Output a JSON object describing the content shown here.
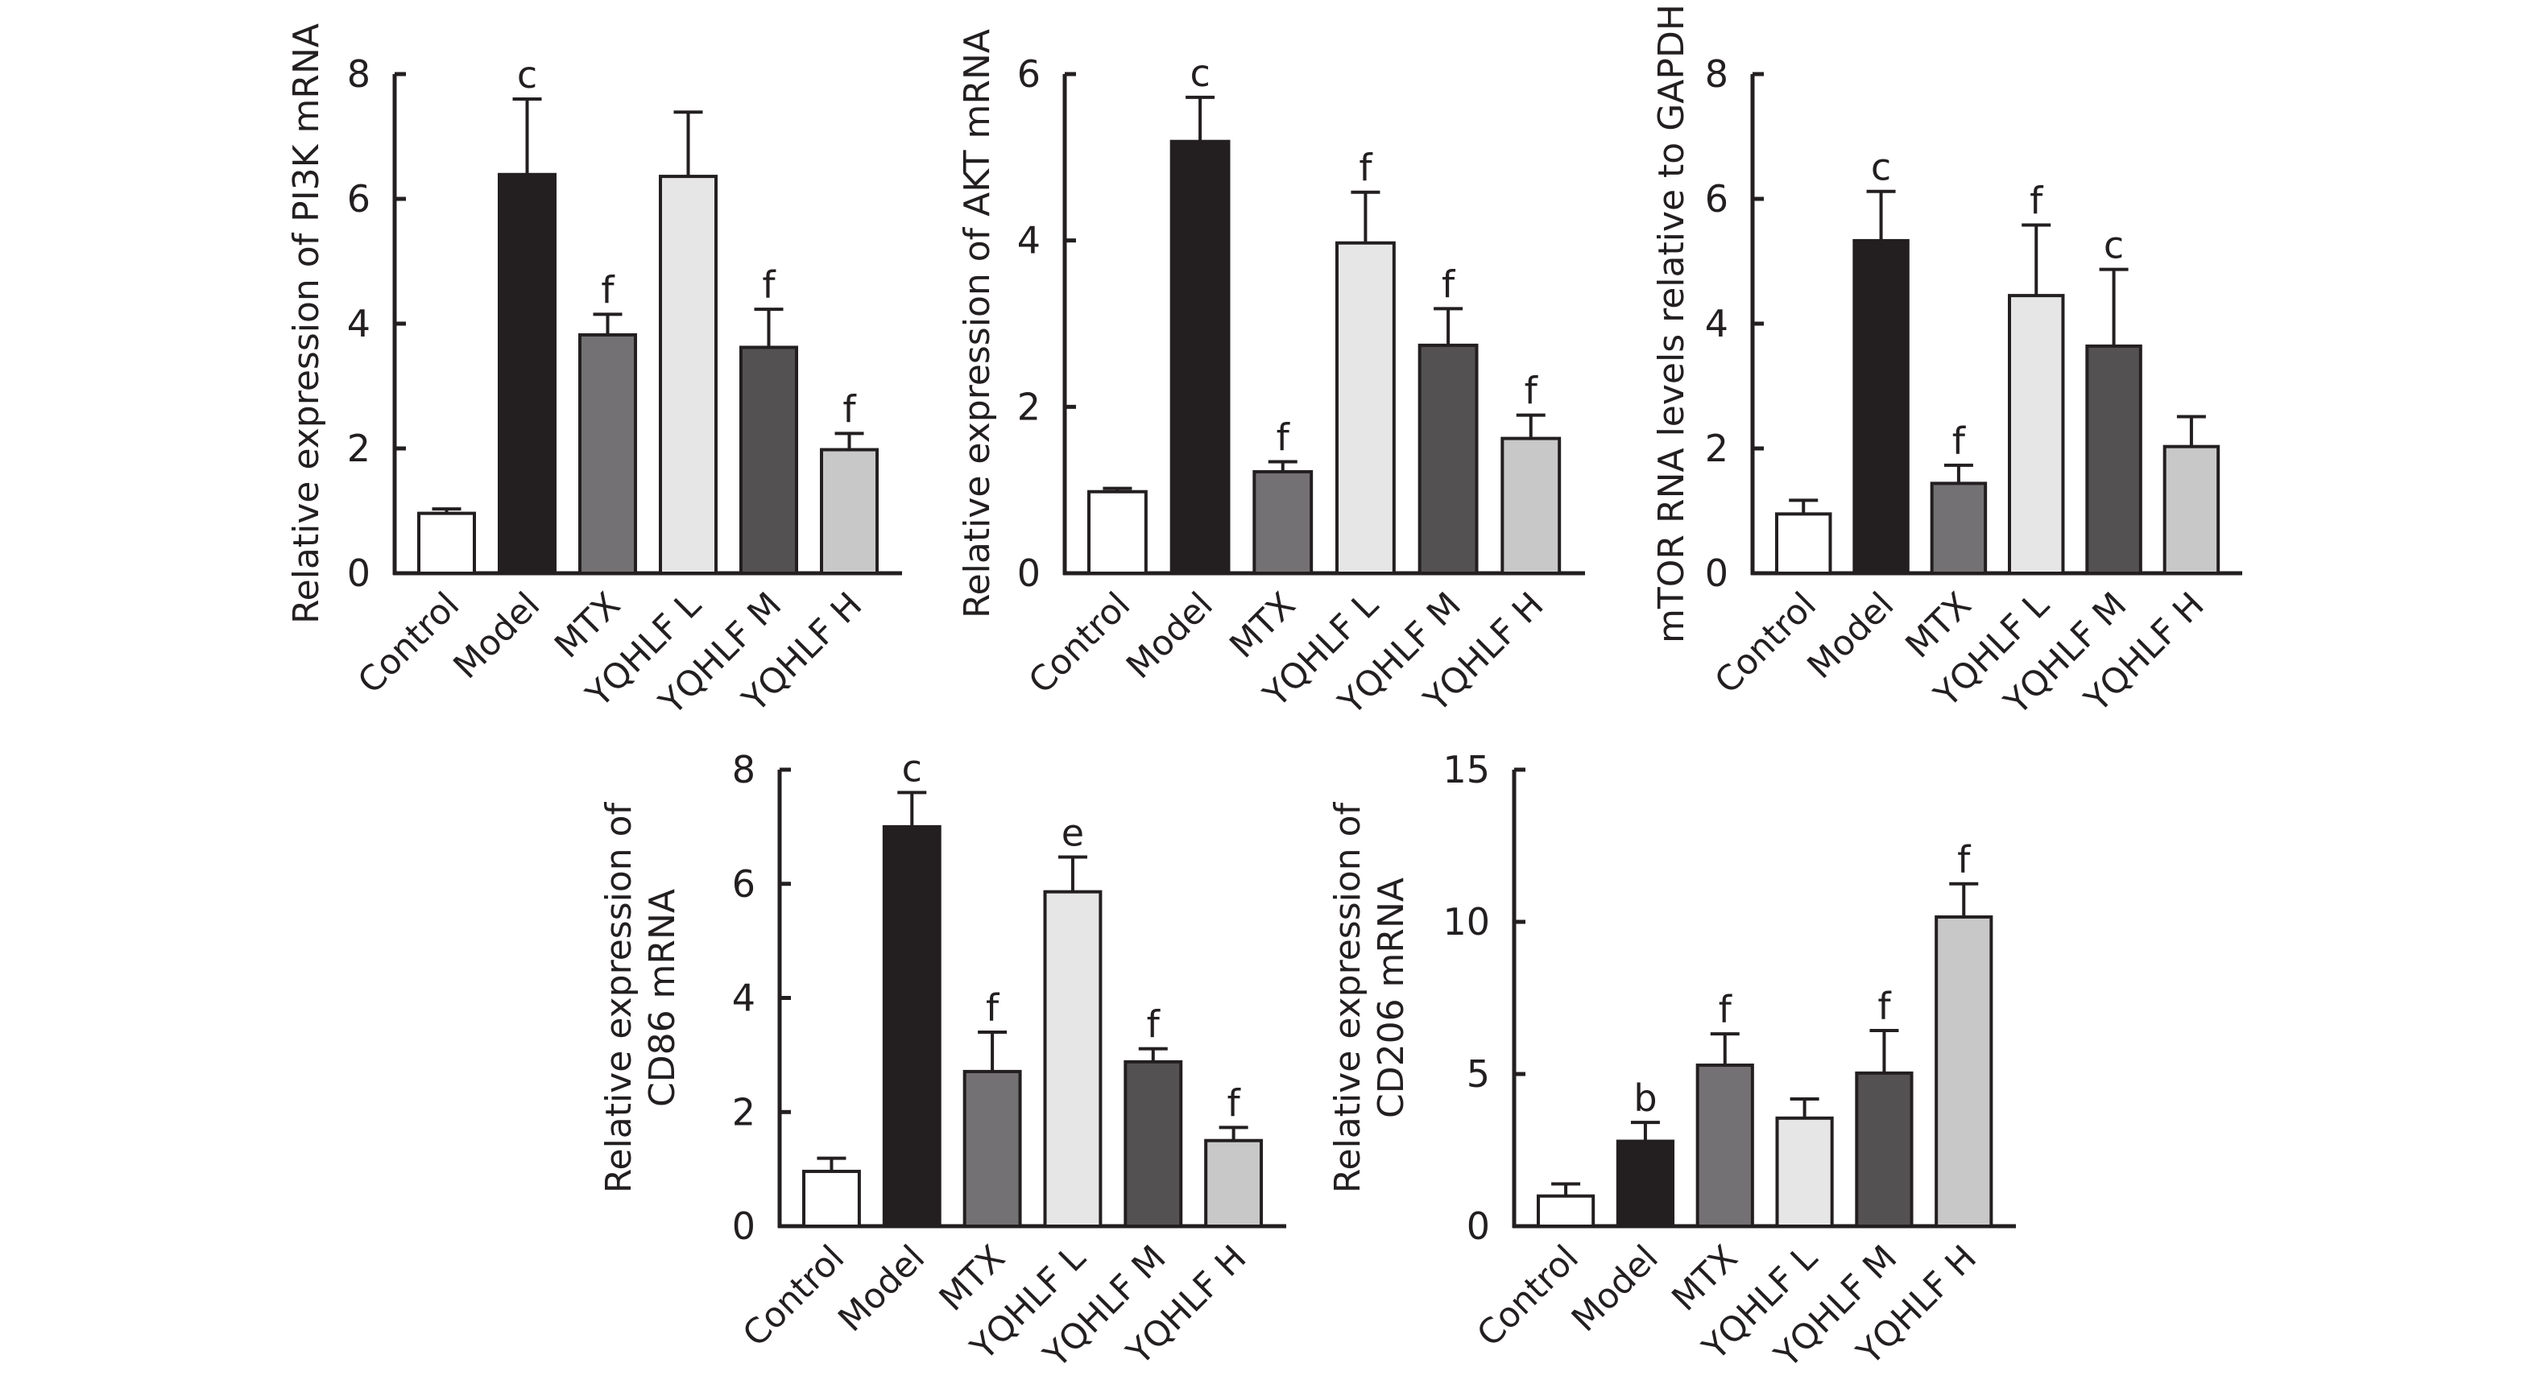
{
  "chart_data": [
    {
      "id": "pi3k",
      "type": "bar",
      "title": "",
      "xlabel": "",
      "ylabel": [
        "Relative expression of PI3K mRNA"
      ],
      "ylim": [
        0,
        8
      ],
      "yticks": [
        0,
        2,
        4,
        6,
        8
      ],
      "grid": false,
      "categories": [
        "Control",
        "Model",
        "MTX",
        "YQHLF L",
        "YQHLF M",
        "YQHLF H"
      ],
      "values": [
        0.96,
        6.39,
        3.82,
        6.36,
        3.62,
        1.98
      ],
      "error_upper": [
        1.03,
        7.6,
        4.15,
        7.39,
        4.23,
        2.24
      ],
      "significance": [
        "",
        "c",
        "f",
        "",
        "f",
        "f"
      ]
    },
    {
      "id": "akt",
      "type": "bar",
      "title": "",
      "xlabel": "",
      "ylabel": [
        "Relative expression of AKT mRNA"
      ],
      "ylim": [
        0,
        6
      ],
      "yticks": [
        0,
        2,
        4,
        6
      ],
      "grid": false,
      "categories": [
        "Control",
        "Model",
        "MTX",
        "YQHLF L",
        "YQHLF M",
        "YQHLF H"
      ],
      "values": [
        0.98,
        5.19,
        1.22,
        3.97,
        2.74,
        1.62
      ],
      "error_upper": [
        1.02,
        5.72,
        1.34,
        4.58,
        3.18,
        1.9
      ],
      "significance": [
        "",
        "c",
        "f",
        "f",
        "f",
        "f"
      ]
    },
    {
      "id": "mtor",
      "type": "bar",
      "title": "",
      "xlabel": "",
      "ylabel": [
        "mTOR RNA levels relative to GAPDH"
      ],
      "ylim": [
        0,
        8
      ],
      "yticks": [
        0,
        2,
        4,
        6,
        8
      ],
      "grid": false,
      "categories": [
        "Control",
        "Model",
        "MTX",
        "YQHLF L",
        "YQHLF M",
        "YQHLF H"
      ],
      "values": [
        0.95,
        5.33,
        1.44,
        4.45,
        3.64,
        2.03
      ],
      "error_upper": [
        1.17,
        6.12,
        1.73,
        5.58,
        4.87,
        2.51
      ],
      "significance": [
        "",
        "c",
        "f",
        "f",
        "c",
        ""
      ]
    },
    {
      "id": "cd86",
      "type": "bar",
      "title": "",
      "xlabel": "",
      "ylabel": [
        "Relative expression of",
        "CD86 mRNA"
      ],
      "ylim": [
        0,
        8
      ],
      "yticks": [
        0,
        2,
        4,
        6,
        8
      ],
      "grid": false,
      "categories": [
        "Control",
        "Model",
        "MTX",
        "YQHLF L",
        "YQHLF M",
        "YQHLF H"
      ],
      "values": [
        0.96,
        7.0,
        2.71,
        5.86,
        2.88,
        1.5
      ],
      "error_upper": [
        1.19,
        7.6,
        3.4,
        6.47,
        3.11,
        1.73
      ],
      "significance": [
        "",
        "c",
        "f",
        "e",
        "f",
        "f"
      ]
    },
    {
      "id": "cd206",
      "type": "bar",
      "title": "",
      "xlabel": "",
      "ylabel": [
        "Relative expression of",
        "CD206 mRNA"
      ],
      "ylim": [
        0,
        15
      ],
      "yticks": [
        0,
        5,
        10,
        15
      ],
      "grid": false,
      "categories": [
        "Control",
        "Model",
        "MTX",
        "YQHLF L",
        "YQHLF M",
        "YQHLF H"
      ],
      "values": [
        0.99,
        2.79,
        5.29,
        3.55,
        5.03,
        10.16
      ],
      "error_upper": [
        1.39,
        3.41,
        6.32,
        4.18,
        6.43,
        11.25
      ],
      "significance": [
        "",
        "b",
        "f",
        "",
        "f",
        "f"
      ]
    }
  ],
  "colors": {
    "Control": "#ffffff",
    "Model": "#231f20",
    "MTX": "#737173",
    "YQHLF L": "#e6e6e6",
    "YQHLF M": "#535152",
    "YQHLF H": "#c8c8c8",
    "ink": "#231f20"
  }
}
